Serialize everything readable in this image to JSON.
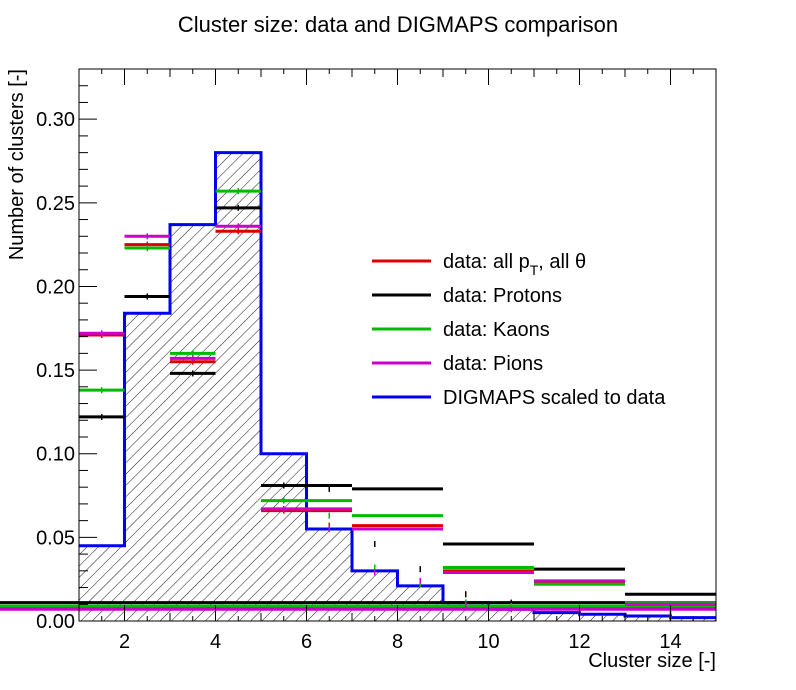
{
  "chart_data": {
    "type": "bar",
    "title": "Cluster size: data and DIGMAPS comparison",
    "xlabel": "Cluster size [-]",
    "ylabel": "Number of clusters [-]",
    "xlim": [
      1,
      15
    ],
    "ylim": [
      0,
      0.33
    ],
    "x_ticks": [
      2,
      4,
      6,
      8,
      10,
      12,
      14
    ],
    "y_ticks": [
      0.0,
      0.05,
      0.1,
      0.15,
      0.2,
      0.25,
      0.3
    ],
    "bin_edges": [
      1,
      2,
      3,
      4,
      5,
      7,
      9,
      11,
      13,
      15
    ],
    "legend_position": "right, mid-height",
    "series": [
      {
        "name": "data: all p_T, all θ",
        "color": "#dd0000",
        "values": [
          0.171,
          0.225,
          0.155,
          0.233,
          0.066,
          0.057,
          0.03,
          0.023,
          0.011,
          0.008,
          0.005,
          0.003
        ],
        "x": [
          1.5,
          2.5,
          3.5,
          4.5,
          5.5,
          6.5,
          7.5,
          8.5,
          9.5,
          10.5,
          12,
          14
        ]
      },
      {
        "name": "data: Protons",
        "color": "#000000",
        "values": [
          0.122,
          0.194,
          0.148,
          0.247,
          0.081,
          0.079,
          0.046,
          0.031,
          0.016,
          0.011,
          0.008,
          0.005
        ],
        "x": [
          1.5,
          2.5,
          3.5,
          4.5,
          5.5,
          6.5,
          7.5,
          8.5,
          9.5,
          10.5,
          12,
          14
        ]
      },
      {
        "name": "data: Kaons",
        "color": "#00bb00",
        "values": [
          0.138,
          0.223,
          0.16,
          0.257,
          0.072,
          0.063,
          0.032,
          0.022,
          0.011,
          0.009,
          0.005,
          0.003
        ],
        "x": [
          1.5,
          2.5,
          3.5,
          4.5,
          5.5,
          6.5,
          7.5,
          8.5,
          9.5,
          10.5,
          12,
          14
        ]
      },
      {
        "name": "data: Pions",
        "color": "#cc00cc",
        "values": [
          0.172,
          0.23,
          0.157,
          0.236,
          0.067,
          0.055,
          0.029,
          0.024,
          0.01,
          0.007,
          0.004,
          0.002
        ],
        "x": [
          1.5,
          2.5,
          3.5,
          4.5,
          5.5,
          6.5,
          7.5,
          8.5,
          9.5,
          10.5,
          12,
          14
        ]
      }
    ],
    "histogram": {
      "name": "DIGMAPS scaled to data",
      "color": "#0000ee",
      "edges": [
        1,
        2,
        3,
        4,
        5,
        6,
        7,
        8,
        9,
        10,
        11,
        12,
        13,
        14,
        15
      ],
      "values": [
        0.045,
        0.184,
        0.237,
        0.28,
        0.1,
        0.055,
        0.03,
        0.021,
        0.011,
        0.007,
        0.005,
        0.004,
        0.003,
        0.002
      ]
    },
    "legend": [
      {
        "label_main": "data: all p",
        "label_sub": "T",
        "label_tail": ", all θ",
        "color": "#dd0000"
      },
      {
        "label_main": "data: Protons",
        "label_sub": "",
        "label_tail": "",
        "color": "#000000"
      },
      {
        "label_main": "data: Kaons",
        "label_sub": "",
        "label_tail": "",
        "color": "#00bb00"
      },
      {
        "label_main": "data: Pions",
        "label_sub": "",
        "label_tail": "",
        "color": "#cc00cc"
      },
      {
        "label_main": "DIGMAPS scaled to data",
        "label_sub": "",
        "label_tail": "",
        "color": "#0000ee"
      }
    ]
  }
}
